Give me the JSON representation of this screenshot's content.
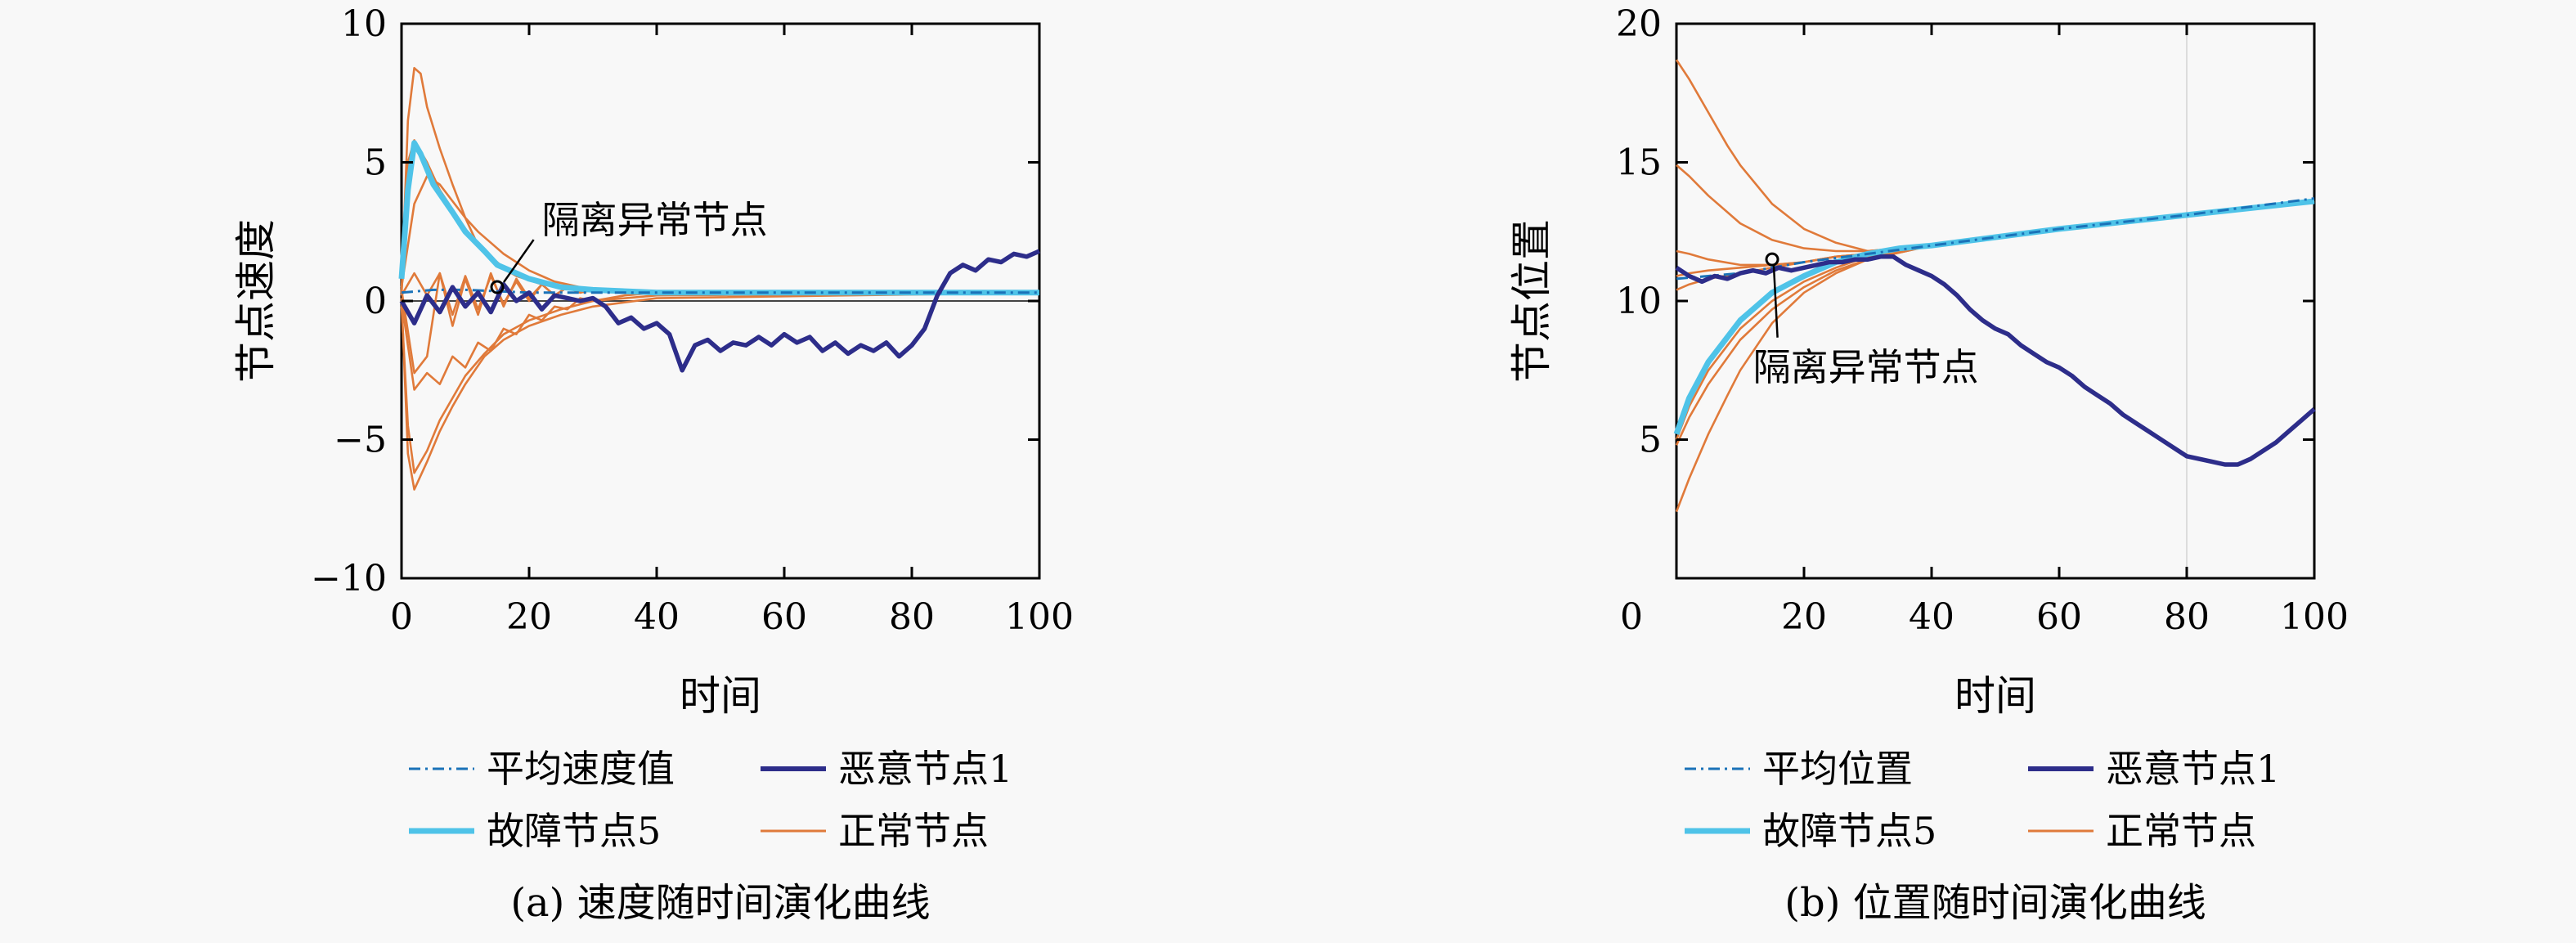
{
  "chart_data": [
    {
      "type": "line",
      "caption": "(a) 速度随时间演化曲线",
      "xlabel": "时间",
      "ylabel": "节点速度",
      "xlim": [
        0,
        100
      ],
      "ylim": [
        -10,
        10
      ],
      "xticks": [
        "0",
        "20",
        "40",
        "60",
        "80",
        "100"
      ],
      "yticks": [
        "10",
        "5",
        "0",
        "−5",
        "−10"
      ],
      "annotation": {
        "text": "隔离异常节点",
        "point": [
          15,
          0.5
        ],
        "label_at": [
          22,
          2.8
        ]
      },
      "legend": [
        {
          "name": "平均速度值",
          "color": "#1a72b8",
          "style": "dash-dot"
        },
        {
          "name": "恶意节点1",
          "color": "#2d2d8a",
          "style": "solid-thick"
        },
        {
          "name": "故障节点5",
          "color": "#4fc3e8",
          "style": "solid-thick"
        },
        {
          "name": "正常节点",
          "color": "#e07a3a",
          "style": "solid"
        }
      ],
      "series": {
        "average": {
          "x": [
            0,
            5,
            10,
            20,
            30,
            100
          ],
          "y": [
            0.3,
            0.4,
            0.4,
            0.3,
            0.3,
            0.3
          ]
        },
        "faulty": {
          "x": [
            0,
            1,
            2,
            3,
            5,
            8,
            10,
            13,
            15,
            18,
            20,
            25,
            30,
            40,
            100
          ],
          "y": [
            0.8,
            4,
            5.7,
            5.3,
            4.2,
            3.2,
            2.5,
            1.8,
            1.3,
            1.0,
            0.8,
            0.5,
            0.4,
            0.3,
            0.3
          ]
        },
        "malicious": {
          "x": [
            0,
            2,
            4,
            6,
            8,
            10,
            12,
            14,
            16,
            18,
            20,
            22,
            24,
            26,
            28,
            30,
            32,
            34,
            36,
            38,
            40,
            42,
            44,
            46,
            48,
            50,
            52,
            54,
            56,
            58,
            60,
            62,
            64,
            66,
            68,
            70,
            72,
            74,
            76,
            78,
            80,
            82,
            84,
            86,
            88,
            90,
            92,
            94,
            96,
            98,
            100
          ],
          "y": [
            0,
            -0.8,
            0.2,
            -0.4,
            0.5,
            -0.2,
            0.3,
            -0.4,
            0.6,
            0.0,
            0.3,
            -0.3,
            0.2,
            0.1,
            0.0,
            0.1,
            -0.2,
            -0.8,
            -0.6,
            -1.0,
            -0.8,
            -1.2,
            -2.5,
            -1.6,
            -1.4,
            -1.8,
            -1.5,
            -1.6,
            -1.3,
            -1.6,
            -1.2,
            -1.5,
            -1.3,
            -1.8,
            -1.5,
            -1.9,
            -1.6,
            -1.8,
            -1.5,
            -2.0,
            -1.6,
            -1.0,
            0.2,
            1.0,
            1.3,
            1.1,
            1.5,
            1.4,
            1.7,
            1.6,
            1.8
          ]
        },
        "normal": [
          {
            "x": [
              0,
              1,
              2,
              3,
              4,
              6,
              8,
              10,
              12,
              15,
              18,
              22,
              27,
              35,
              45,
              100
            ],
            "y": [
              0.3,
              6.5,
              8.4,
              8.2,
              7.0,
              5.5,
              4.2,
              3.0,
              2.0,
              1.3,
              0.9,
              0.6,
              0.4,
              0.3,
              0.3,
              0.3
            ]
          },
          {
            "x": [
              0,
              1,
              2,
              4,
              6,
              8,
              10,
              13,
              16,
              20,
              25,
              30,
              40,
              100
            ],
            "y": [
              0.2,
              5.0,
              5.8,
              5.0,
              4.0,
              3.3,
              2.6,
              1.8,
              1.2,
              0.8,
              0.5,
              0.4,
              0.3,
              0.3
            ]
          },
          {
            "x": [
              0,
              2,
              4,
              6,
              8,
              10,
              12,
              14,
              16,
              18,
              20,
              22,
              24,
              26,
              28,
              30,
              35,
              40,
              100
            ],
            "y": [
              0.5,
              3.5,
              4.5,
              4.2,
              3.6,
              3.0,
              2.5,
              2.1,
              1.7,
              1.4,
              1.1,
              0.9,
              0.7,
              0.6,
              0.5,
              0.4,
              0.3,
              0.3,
              0.3
            ]
          },
          {
            "x": [
              0,
              1,
              2,
              4,
              6,
              8,
              10,
              13,
              16,
              20,
              25,
              30,
              40,
              100
            ],
            "y": [
              0.1,
              -5.5,
              -6.8,
              -5.8,
              -4.7,
              -3.8,
              -3.0,
              -2.0,
              -1.4,
              -0.9,
              -0.5,
              -0.2,
              0.1,
              0.3
            ]
          },
          {
            "x": [
              0,
              1,
              2,
              4,
              6,
              8,
              10,
              13,
              16,
              20,
              25,
              30,
              40,
              100
            ],
            "y": [
              -0.2,
              -4.5,
              -6.2,
              -5.4,
              -4.3,
              -3.5,
              -2.7,
              -1.9,
              -1.2,
              -0.7,
              -0.3,
              0.0,
              0.2,
              0.3
            ]
          },
          {
            "x": [
              0,
              2,
              4,
              6,
              8,
              10,
              12,
              14,
              16,
              18,
              20,
              22,
              24,
              26,
              28,
              30,
              35,
              40,
              100
            ],
            "y": [
              0,
              -3.2,
              -2.6,
              -3.0,
              -2.0,
              -2.4,
              -1.5,
              -1.8,
              -1.0,
              -1.2,
              -0.5,
              -0.7,
              -0.2,
              -0.3,
              0.1,
              0.0,
              0.2,
              0.3,
              0.3
            ]
          },
          {
            "x": [
              0,
              2,
              4,
              6,
              8,
              10,
              12,
              14,
              16,
              18,
              20,
              22,
              24,
              26,
              28,
              30,
              35,
              40,
              100
            ],
            "y": [
              0.4,
              -2.6,
              -2.0,
              1.0,
              -0.9,
              0.8,
              -0.5,
              1.0,
              -0.2,
              0.8,
              0.1,
              0.6,
              0.2,
              0.5,
              0.3,
              0.4,
              0.3,
              0.3,
              0.3
            ]
          },
          {
            "x": [
              0,
              2,
              4,
              6,
              8,
              10,
              12,
              14,
              16,
              18,
              20,
              22,
              24,
              26,
              28,
              30,
              35,
              40,
              100
            ],
            "y": [
              0.2,
              1.0,
              0.2,
              1.0,
              -0.5,
              0.9,
              -0.3,
              0.9,
              -0.1,
              0.7,
              0.0,
              0.6,
              0.2,
              0.5,
              0.3,
              0.4,
              0.3,
              0.3,
              0.3
            ]
          }
        ]
      }
    },
    {
      "type": "line",
      "caption": "(b) 位置随时间演化曲线",
      "xlabel": "时间",
      "ylabel": "节点位置",
      "xlim": [
        0,
        100
      ],
      "ylim": [
        0,
        20
      ],
      "xticks": [
        "0",
        "20",
        "40",
        "60",
        "80",
        "100"
      ],
      "yticks": [
        "20",
        "15",
        "10",
        "5"
      ],
      "annotation": {
        "text": "隔离异常节点",
        "point": [
          15,
          11.5
        ],
        "label_at": [
          12,
          7.5
        ]
      },
      "legend": [
        {
          "name": "平均位置",
          "color": "#1a72b8",
          "style": "dash-dot"
        },
        {
          "name": "恶意节点1",
          "color": "#2d2d8a",
          "style": "solid-thick"
        },
        {
          "name": "故障节点5",
          "color": "#4fc3e8",
          "style": "solid-thick"
        },
        {
          "name": "正常节点",
          "color": "#e07a3a",
          "style": "solid"
        }
      ],
      "series": {
        "average": {
          "x": [
            0,
            10,
            20,
            30,
            40,
            60,
            80,
            100
          ],
          "y": [
            10.8,
            11.0,
            11.4,
            11.7,
            12.0,
            12.6,
            13.1,
            13.7
          ]
        },
        "faulty": {
          "x": [
            0,
            2,
            5,
            10,
            15,
            20,
            25,
            30,
            35,
            40,
            60,
            80,
            100
          ],
          "y": [
            5.2,
            6.5,
            7.8,
            9.3,
            10.3,
            10.9,
            11.4,
            11.7,
            11.9,
            12.0,
            12.6,
            13.1,
            13.6
          ]
        },
        "malicious": {
          "x": [
            0,
            2,
            4,
            6,
            8,
            10,
            12,
            14,
            16,
            18,
            20,
            22,
            24,
            26,
            28,
            30,
            32,
            34,
            36,
            38,
            40,
            42,
            44,
            46,
            48,
            50,
            52,
            54,
            56,
            58,
            60,
            62,
            64,
            66,
            68,
            70,
            72,
            74,
            76,
            78,
            80,
            82,
            84,
            86,
            88,
            90,
            92,
            94,
            96,
            98,
            100
          ],
          "y": [
            11.2,
            10.9,
            10.7,
            10.9,
            10.8,
            11.0,
            11.1,
            11.0,
            11.2,
            11.1,
            11.2,
            11.3,
            11.4,
            11.4,
            11.5,
            11.5,
            11.6,
            11.6,
            11.3,
            11.1,
            10.9,
            10.6,
            10.2,
            9.7,
            9.3,
            9.0,
            8.8,
            8.4,
            8.1,
            7.8,
            7.6,
            7.3,
            6.9,
            6.6,
            6.3,
            5.9,
            5.6,
            5.3,
            5.0,
            4.7,
            4.4,
            4.3,
            4.2,
            4.1,
            4.1,
            4.3,
            4.6,
            4.9,
            5.3,
            5.7,
            6.1
          ]
        },
        "normal": [
          {
            "x": [
              0,
              2,
              5,
              8,
              10,
              15,
              20,
              25,
              30,
              40,
              60,
              80,
              100
            ],
            "y": [
              18.7,
              18.0,
              16.8,
              15.6,
              14.9,
              13.5,
              12.6,
              12.1,
              11.8,
              12.0,
              12.6,
              13.1,
              13.6
            ]
          },
          {
            "x": [
              0,
              2,
              5,
              8,
              10,
              15,
              20,
              25,
              30,
              40,
              60,
              80,
              100
            ],
            "y": [
              14.9,
              14.5,
              13.8,
              13.2,
              12.8,
              12.2,
              11.9,
              11.8,
              11.8,
              12.0,
              12.6,
              13.1,
              13.6
            ]
          },
          {
            "x": [
              0,
              2,
              5,
              10,
              15,
              20,
              25,
              30,
              40,
              60,
              80,
              100
            ],
            "y": [
              11.8,
              11.7,
              11.5,
              11.3,
              11.3,
              11.4,
              11.6,
              11.7,
              12.0,
              12.6,
              13.1,
              13.6
            ]
          },
          {
            "x": [
              0,
              2,
              5,
              10,
              15,
              20,
              25,
              30,
              40,
              60,
              80,
              100
            ],
            "y": [
              10.9,
              11.0,
              11.1,
              11.2,
              11.3,
              11.4,
              11.6,
              11.7,
              12.0,
              12.6,
              13.1,
              13.6
            ]
          },
          {
            "x": [
              0,
              2,
              5,
              10,
              15,
              20,
              25,
              30,
              40,
              60,
              80,
              100
            ],
            "y": [
              10.4,
              10.6,
              10.8,
              11.0,
              11.2,
              11.4,
              11.6,
              11.7,
              12.0,
              12.6,
              13.1,
              13.6
            ]
          },
          {
            "x": [
              0,
              2,
              5,
              10,
              15,
              20,
              25,
              30,
              40,
              60,
              80,
              100
            ],
            "y": [
              5.0,
              6.2,
              7.5,
              9.0,
              10.0,
              10.7,
              11.2,
              11.6,
              12.0,
              12.6,
              13.1,
              13.6
            ]
          },
          {
            "x": [
              0,
              2,
              5,
              10,
              15,
              20,
              25,
              30,
              40,
              60,
              80,
              100
            ],
            "y": [
              4.8,
              5.8,
              7.0,
              8.6,
              9.7,
              10.5,
              11.1,
              11.5,
              12.0,
              12.6,
              13.1,
              13.6
            ]
          },
          {
            "x": [
              0,
              2,
              5,
              8,
              10,
              15,
              20,
              25,
              30,
              40,
              60,
              80,
              100
            ],
            "y": [
              2.4,
              3.6,
              5.2,
              6.6,
              7.5,
              9.2,
              10.3,
              11.0,
              11.5,
              12.0,
              12.6,
              13.1,
              13.6
            ]
          }
        ]
      }
    }
  ]
}
